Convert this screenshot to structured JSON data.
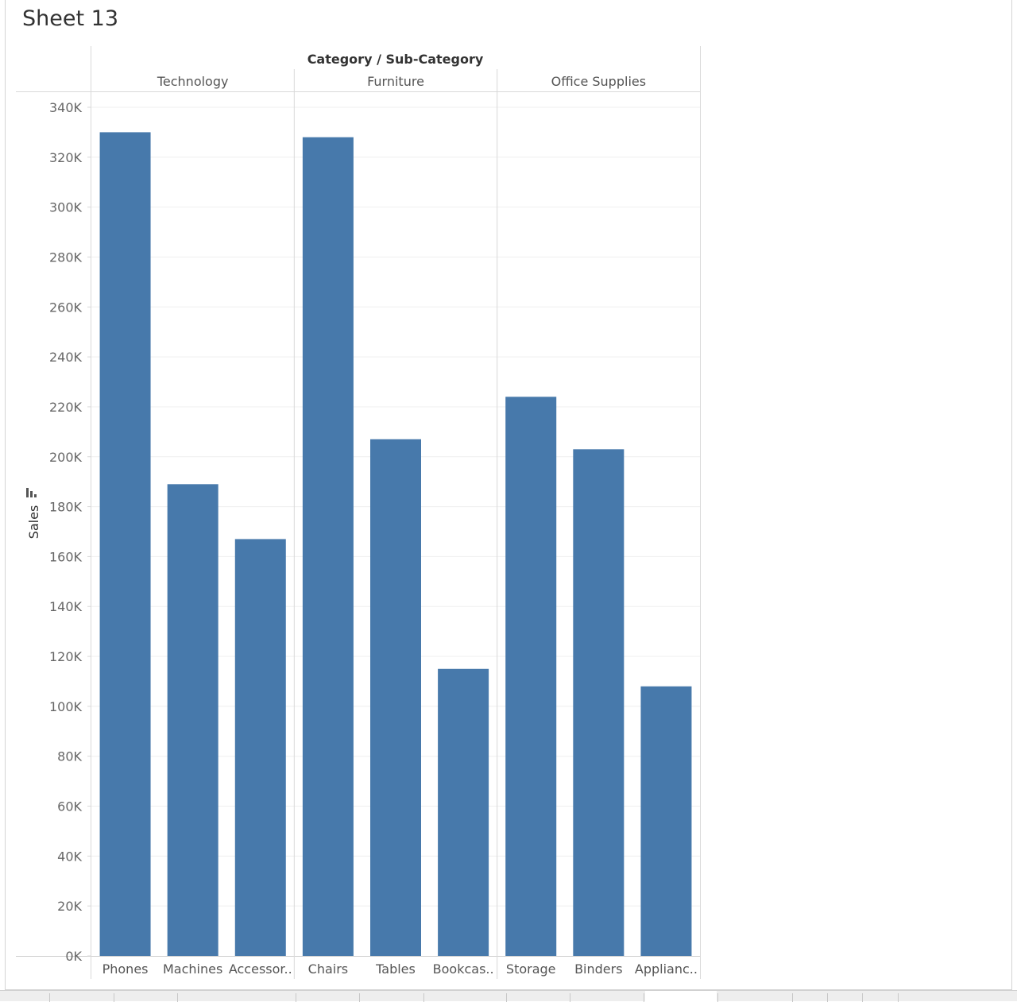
{
  "sheet": {
    "title": "Sheet 13"
  },
  "chart_data": {
    "type": "bar",
    "column_header": "Category / Sub-Category",
    "ylabel": "Sales",
    "ylim": [
      0,
      340000
    ],
    "yticks": [
      0,
      20000,
      40000,
      60000,
      80000,
      100000,
      120000,
      140000,
      160000,
      180000,
      200000,
      220000,
      240000,
      260000,
      280000,
      300000,
      320000,
      340000
    ],
    "ytick_labels": [
      "0K",
      "20K",
      "40K",
      "60K",
      "80K",
      "100K",
      "120K",
      "140K",
      "160K",
      "180K",
      "200K",
      "220K",
      "240K",
      "260K",
      "280K",
      "300K",
      "320K",
      "340K"
    ],
    "grid": true,
    "bar_color": "#4779ab",
    "groups": [
      {
        "name": "Technology",
        "categories": [
          "Phones",
          "Machines",
          "Accessor.."
        ],
        "values": [
          330000,
          189000,
          167000
        ]
      },
      {
        "name": "Furniture",
        "categories": [
          "Chairs",
          "Tables",
          "Bookcas.."
        ],
        "values": [
          328000,
          207000,
          115000
        ]
      },
      {
        "name": "Office Supplies",
        "categories": [
          "Storage",
          "Binders",
          "Applianc.."
        ],
        "values": [
          224000,
          203000,
          108000
        ]
      }
    ]
  }
}
